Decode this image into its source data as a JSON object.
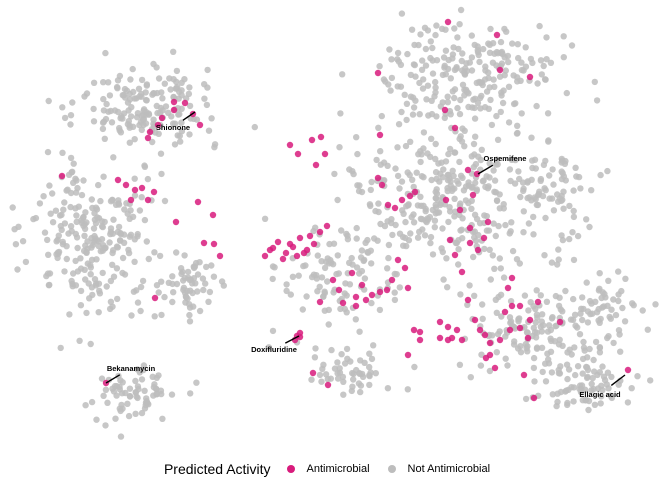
{
  "chart_data": {
    "type": "scatter",
    "title": "",
    "xlabel": "",
    "ylabel": "",
    "grid": false,
    "legend": {
      "title": "Predicted Activity",
      "placement": "bottom",
      "entries": [
        {
          "name": "Antimicrobial",
          "color": "#D81B7C"
        },
        {
          "name": "Not Antimicrobial",
          "color": "#BDBDBD"
        }
      ]
    },
    "series": [
      {
        "name": "Not Antimicrobial",
        "color": "#BDBDBD",
        "clusters": [
          {
            "center": [
              145,
              110
            ],
            "spread": [
              62,
              40
            ],
            "count": 170
          },
          {
            "center": [
              95,
              240
            ],
            "spread": [
              58,
              70
            ],
            "count": 230
          },
          {
            "center": [
              190,
              285
            ],
            "spread": [
              35,
              30
            ],
            "count": 60
          },
          {
            "center": [
              135,
              395
            ],
            "spread": [
              38,
              25
            ],
            "count": 70
          },
          {
            "center": [
              470,
              75
            ],
            "spread": [
              80,
              45
            ],
            "count": 220
          },
          {
            "center": [
              455,
              195
            ],
            "spread": [
              95,
              65
            ],
            "count": 320
          },
          {
            "center": [
              340,
              275
            ],
            "spread": [
              55,
              60
            ],
            "count": 110
          },
          {
            "center": [
              560,
              200
            ],
            "spread": [
              25,
              45
            ],
            "count": 50
          },
          {
            "center": [
              540,
              330
            ],
            "spread": [
              75,
              40
            ],
            "count": 150
          },
          {
            "center": [
              585,
              385
            ],
            "spread": [
              48,
              22
            ],
            "count": 70
          },
          {
            "center": [
              355,
              375
            ],
            "spread": [
              40,
              18
            ],
            "count": 50
          },
          {
            "center": [
              605,
              300
            ],
            "spread": [
              30,
              20
            ],
            "count": 40
          }
        ]
      },
      {
        "name": "Antimicrobial",
        "color": "#D81B7C",
        "points": [
          [
            193,
            114
          ],
          [
            185,
            103
          ],
          [
            158,
            125
          ],
          [
            150,
            132
          ],
          [
            162,
            118
          ],
          [
            174,
            110
          ],
          [
            148,
            138
          ],
          [
            200,
            125
          ],
          [
            174,
            102
          ],
          [
            135,
            190
          ],
          [
            142,
            188
          ],
          [
            148,
            200
          ],
          [
            131,
            200
          ],
          [
            126,
            185
          ],
          [
            118,
            180
          ],
          [
            154,
            192
          ],
          [
            62,
            176
          ],
          [
            176,
            222
          ],
          [
            198,
            202
          ],
          [
            213,
            215
          ],
          [
            204,
            243
          ],
          [
            220,
            256
          ],
          [
            214,
            244
          ],
          [
            155,
            298
          ],
          [
            106,
            383
          ],
          [
            270,
            250
          ],
          [
            278,
            242
          ],
          [
            286,
            253
          ],
          [
            293,
            247
          ],
          [
            300,
            238
          ],
          [
            307,
            250
          ],
          [
            314,
            244
          ],
          [
            297,
            256
          ],
          [
            283,
            259
          ],
          [
            265,
            256
          ],
          [
            320,
            232
          ],
          [
            327,
            226
          ],
          [
            304,
            253
          ],
          [
            290,
            244
          ],
          [
            310,
            236
          ],
          [
            273,
            248
          ],
          [
            316,
            165
          ],
          [
            312,
            140
          ],
          [
            321,
            137
          ],
          [
            325,
            154
          ],
          [
            298,
            154
          ],
          [
            290,
            145
          ],
          [
            380,
            135
          ],
          [
            378,
            73
          ],
          [
            382,
            185
          ],
          [
            378,
            178
          ],
          [
            388,
            205
          ],
          [
            395,
            208
          ],
          [
            402,
            200
          ],
          [
            410,
            196
          ],
          [
            415,
            192
          ],
          [
            445,
            110
          ],
          [
            455,
            128
          ],
          [
            468,
            170
          ],
          [
            477,
            174
          ],
          [
            473,
            195
          ],
          [
            446,
            200
          ],
          [
            460,
            210
          ],
          [
            470,
            228
          ],
          [
            470,
            243
          ],
          [
            478,
            250
          ],
          [
            484,
            238
          ],
          [
            488,
            222
          ],
          [
            462,
            272
          ],
          [
            450,
            240
          ],
          [
            455,
            255
          ],
          [
            497,
            35
          ],
          [
            448,
            22
          ],
          [
            530,
            77
          ],
          [
            500,
            70
          ],
          [
            380,
            292
          ],
          [
            372,
            295
          ],
          [
            366,
            300
          ],
          [
            356,
            297
          ],
          [
            343,
            303
          ],
          [
            339,
            290
          ],
          [
            352,
            273
          ],
          [
            387,
            290
          ],
          [
            356,
            306
          ],
          [
            362,
            285
          ],
          [
            398,
            260
          ],
          [
            405,
            268
          ],
          [
            392,
            280
          ],
          [
            408,
            288
          ],
          [
            320,
            302
          ],
          [
            333,
            280
          ],
          [
            414,
            330
          ],
          [
            420,
            332
          ],
          [
            448,
            327
          ],
          [
            452,
            338
          ],
          [
            457,
            330
          ],
          [
            462,
            340
          ],
          [
            448,
            340
          ],
          [
            440,
            322
          ],
          [
            475,
            320
          ],
          [
            480,
            330
          ],
          [
            490,
            343
          ],
          [
            500,
            340
          ],
          [
            510,
            330
          ],
          [
            520,
            328
          ],
          [
            530,
            320
          ],
          [
            490,
            355
          ],
          [
            486,
            358
          ],
          [
            495,
            368
          ],
          [
            485,
            335
          ],
          [
            505,
            312
          ],
          [
            512,
            306
          ],
          [
            538,
            302
          ],
          [
            520,
            306
          ],
          [
            528,
            338
          ],
          [
            512,
            278
          ],
          [
            508,
            288
          ],
          [
            468,
            300
          ],
          [
            534,
            398
          ],
          [
            560,
            322
          ],
          [
            628,
            370
          ],
          [
            524,
            375
          ],
          [
            295,
            340
          ],
          [
            300,
            333
          ],
          [
            297,
            336
          ],
          [
            300,
            337
          ],
          [
            328,
            385
          ],
          [
            313,
            373
          ],
          [
            420,
            340
          ],
          [
            440,
            338
          ],
          [
            408,
            355
          ]
        ]
      }
    ],
    "annotations": [
      {
        "text": "Shionone",
        "point": [
          195,
          112
        ],
        "label": [
          173,
          127
        ]
      },
      {
        "text": "Ospemifene",
        "point": [
          478,
          174
        ],
        "label": [
          505,
          158
        ]
      },
      {
        "text": "Doxifluridine",
        "point": [
          299,
          336
        ],
        "label": [
          274,
          349
        ]
      },
      {
        "text": "Bekanamycin",
        "point": [
          106,
          383
        ],
        "label": [
          131,
          368
        ]
      },
      {
        "text": "Ellagic acid",
        "point": [
          625,
          375
        ],
        "label": [
          600,
          394
        ]
      }
    ]
  }
}
